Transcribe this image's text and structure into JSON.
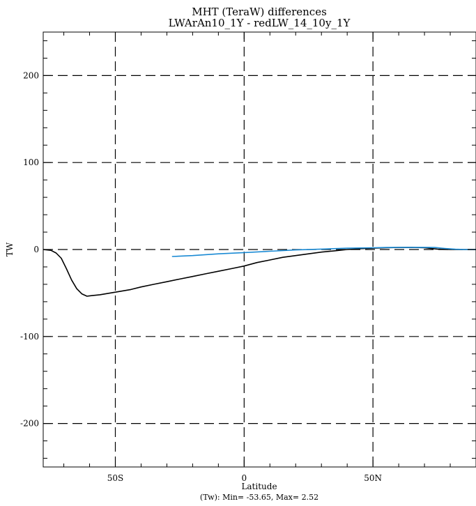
{
  "chart_data": {
    "type": "line",
    "title": "MHT (TeraW) differences",
    "subtitle": "LWArAn10_1Y - redLW_14_10y_1Y",
    "xlabel": "Latitude",
    "ylabel": "TW",
    "footer": "(Tw): Min= -53.65, Max= 2.52",
    "xlim": [
      -78,
      90
    ],
    "ylim": [
      -250,
      250
    ],
    "grid": true,
    "x_ticks": [
      {
        "value": -50,
        "label": "50S"
      },
      {
        "value": 0,
        "label": "0"
      },
      {
        "value": 50,
        "label": "50N"
      }
    ],
    "y_ticks": [
      {
        "value": 200,
        "label": "200"
      },
      {
        "value": 100,
        "label": "100"
      },
      {
        "value": 0,
        "label": "0"
      },
      {
        "value": -100,
        "label": "-100"
      },
      {
        "value": -200,
        "label": "-200"
      }
    ],
    "series": [
      {
        "color": "#000000",
        "x": [
          -78,
          -75,
          -73,
          -71,
          -69,
          -67,
          -65,
          -63,
          -61,
          -59,
          -56,
          -52,
          -48,
          -44,
          -40,
          -35,
          -30,
          -25,
          -20,
          -15,
          -10,
          -5,
          0,
          5,
          10,
          15,
          20,
          25,
          30,
          35,
          40,
          45,
          50,
          55,
          60,
          65,
          70,
          75,
          80,
          85,
          90
        ],
        "values": [
          0,
          -1,
          -4,
          -10,
          -22,
          -35,
          -45,
          -51,
          -53.65,
          -53,
          -52,
          -50,
          -48,
          -46,
          -43,
          -40,
          -37,
          -34,
          -31,
          -28,
          -25,
          -22,
          -19,
          -15,
          -12,
          -9,
          -7,
          -5,
          -3,
          -1.5,
          0,
          1,
          1.5,
          2,
          2.3,
          2.52,
          2,
          0.5,
          0,
          0,
          0
        ]
      },
      {
        "color": "#1a8ad4",
        "x": [
          -28,
          -20,
          -10,
          0,
          10,
          20,
          30,
          40,
          50,
          55,
          60,
          65,
          70,
          74,
          78,
          82,
          86,
          90
        ],
        "values": [
          -8,
          -7,
          -5,
          -3.5,
          -2,
          -0.5,
          0.5,
          1.5,
          2,
          2.3,
          2.5,
          2.5,
          2.52,
          2.3,
          1.2,
          0.3,
          0,
          0
        ]
      }
    ]
  }
}
